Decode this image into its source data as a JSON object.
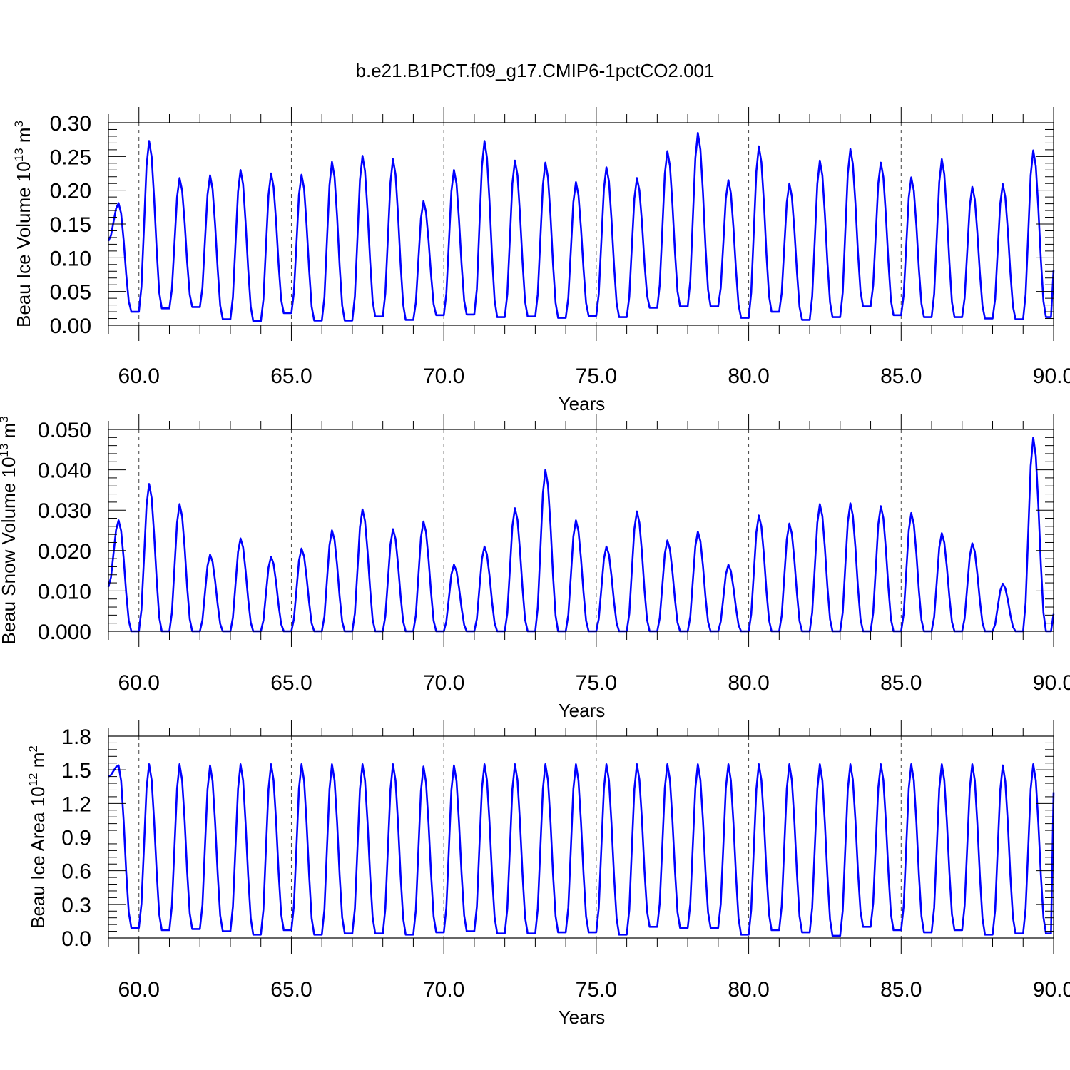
{
  "title": "b.e21.B1PCT.f09_g17.CMIP6-1pctCO2.001",
  "chart_data": [
    {
      "type": "line",
      "ylabel": "Beau Ice Volume 10",
      "ylabel_exponent": "13",
      "ylabel_unit": " m",
      "ylabel_unit_exponent": "3",
      "xlabel": "Years",
      "xlim": [
        59.0,
        90.0
      ],
      "ylim": [
        0.0,
        0.3
      ],
      "xticks": [
        "60.0",
        "65.0",
        "70.0",
        "75.0",
        "80.0",
        "85.0",
        "90.0"
      ],
      "yticks": [
        "0.00",
        "0.05",
        "0.10",
        "0.15",
        "0.20",
        "0.25",
        "0.30"
      ],
      "grid": "vertical dashed at major x ticks",
      "series": [
        {
          "color": "#0000ff",
          "peaks": [
            0.181,
            0.273,
            0.218,
            0.222,
            0.23,
            0.225,
            0.223,
            0.242,
            0.251,
            0.246,
            0.184,
            0.23,
            0.273,
            0.244,
            0.241,
            0.212,
            0.234,
            0.218,
            0.258,
            0.285,
            0.215,
            0.265,
            0.21,
            0.244,
            0.261,
            0.241,
            0.219,
            0.246,
            0.205,
            0.209,
            0.259
          ],
          "troughs": [
            0.02,
            0.025,
            0.027,
            0.009,
            0.006,
            0.018,
            0.007,
            0.007,
            0.013,
            0.008,
            0.015,
            0.016,
            0.012,
            0.013,
            0.011,
            0.014,
            0.012,
            0.026,
            0.028,
            0.028,
            0.011,
            0.02,
            0.008,
            0.012,
            0.028,
            0.015,
            0.012,
            0.012,
            0.01,
            0.009,
            0.012
          ],
          "start": 0.125,
          "end": 0.082
        }
      ]
    },
    {
      "type": "line",
      "ylabel": "Beau Snow Volume 10",
      "ylabel_exponent": "13",
      "ylabel_unit": " m",
      "ylabel_unit_exponent": "3",
      "xlabel": "Years",
      "xlim": [
        59.0,
        90.0
      ],
      "ylim": [
        0.0,
        0.05
      ],
      "xticks": [
        "60.0",
        "65.0",
        "70.0",
        "75.0",
        "80.0",
        "85.0",
        "90.0"
      ],
      "yticks": [
        "0.000",
        "0.010",
        "0.020",
        "0.030",
        "0.040",
        "0.050"
      ],
      "grid": "vertical dashed at major x ticks",
      "series": [
        {
          "color": "#0000ff",
          "peaks": [
            0.0275,
            0.0365,
            0.0315,
            0.019,
            0.023,
            0.0185,
            0.0205,
            0.025,
            0.0302,
            0.0253,
            0.0272,
            0.0165,
            0.021,
            0.0305,
            0.04,
            0.0275,
            0.021,
            0.0297,
            0.0225,
            0.0247,
            0.0165,
            0.0287,
            0.0267,
            0.0315,
            0.0317,
            0.031,
            0.0293,
            0.0243,
            0.0218,
            0.0118,
            0.048
          ],
          "troughs": [
            0.0,
            0.0,
            0.0,
            0.0,
            0.0,
            0.0,
            0.0,
            0.0,
            0.0,
            0.0,
            0.0,
            0.0,
            0.0,
            0.0,
            0.0,
            0.0,
            0.0,
            0.0,
            0.0,
            0.0,
            0.0,
            0.0,
            0.0,
            0.0,
            0.0,
            0.0,
            0.0,
            0.0,
            0.0,
            0.0,
            0.0
          ],
          "start": 0.011,
          "end": 0.0043
        }
      ]
    },
    {
      "type": "line",
      "ylabel": "Beau Ice Area 10",
      "ylabel_exponent": "12",
      "ylabel_unit": " m",
      "ylabel_unit_exponent": "2",
      "xlabel": "Years",
      "xlim": [
        59.0,
        90.0
      ],
      "ylim": [
        0.0,
        1.8
      ],
      "xticks": [
        "60.0",
        "65.0",
        "70.0",
        "75.0",
        "80.0",
        "85.0",
        "90.0"
      ],
      "yticks": [
        "0.0",
        "0.3",
        "0.6",
        "0.9",
        "1.2",
        "1.5",
        "1.8"
      ],
      "grid": "vertical dashed at major x ticks",
      "series": [
        {
          "color": "#0000ff",
          "peaks": [
            1.54,
            1.55,
            1.55,
            1.54,
            1.55,
            1.55,
            1.55,
            1.55,
            1.55,
            1.55,
            1.53,
            1.54,
            1.55,
            1.55,
            1.55,
            1.55,
            1.55,
            1.55,
            1.55,
            1.55,
            1.55,
            1.55,
            1.55,
            1.55,
            1.55,
            1.55,
            1.55,
            1.55,
            1.55,
            1.54,
            1.55
          ],
          "troughs": [
            0.09,
            0.07,
            0.08,
            0.06,
            0.03,
            0.07,
            0.03,
            0.04,
            0.04,
            0.03,
            0.05,
            0.06,
            0.04,
            0.04,
            0.05,
            0.05,
            0.03,
            0.1,
            0.09,
            0.09,
            0.03,
            0.07,
            0.05,
            0.02,
            0.1,
            0.07,
            0.05,
            0.07,
            0.03,
            0.04,
            0.04
          ],
          "start": 1.44,
          "end": 1.3
        }
      ]
    }
  ]
}
